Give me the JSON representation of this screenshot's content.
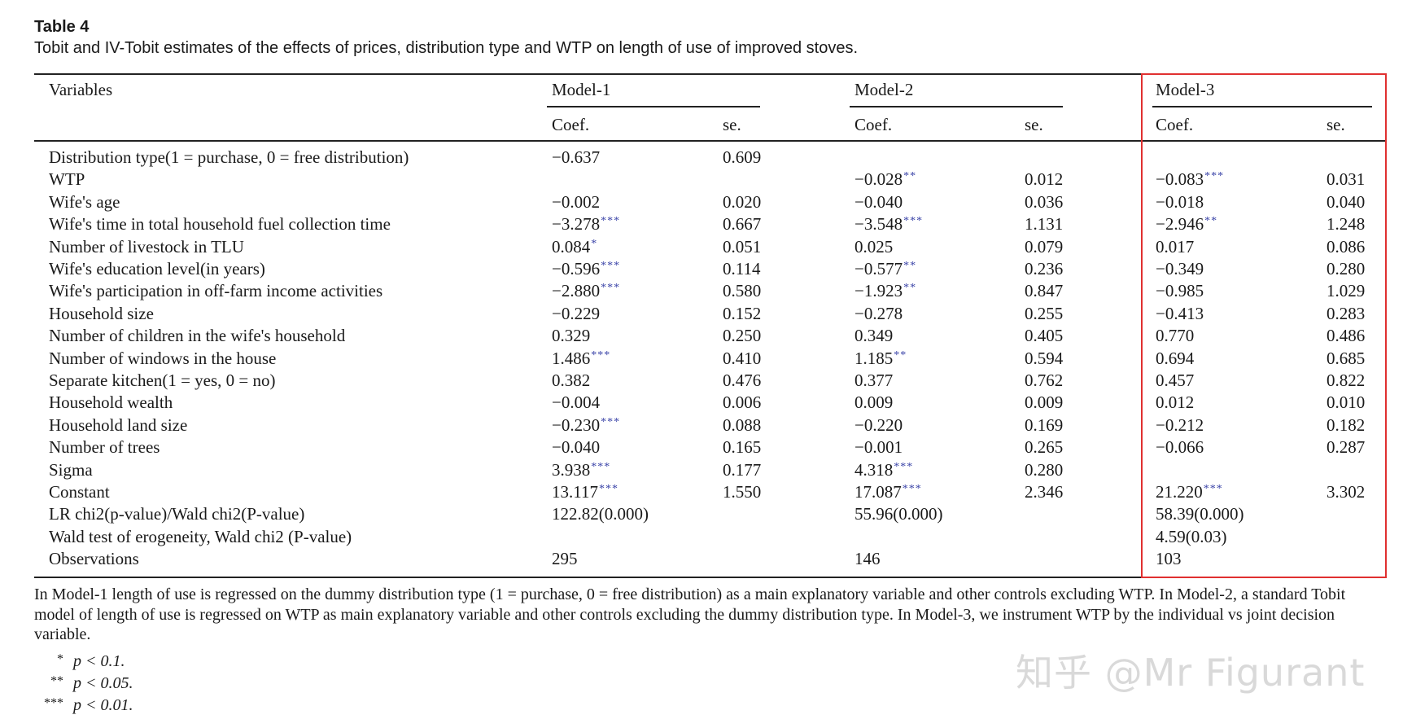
{
  "table_label": "Table 4",
  "caption": "Tobit and IV-Tobit estimates of the effects of prices, distribution type and WTP on length of use of improved stoves.",
  "header": {
    "variables": "Variables",
    "models": [
      "Model-1",
      "Model-2",
      "Model-3"
    ],
    "coef": "Coef.",
    "se": "se."
  },
  "rows": [
    {
      "var": "Distribution type(1 = purchase, 0 = free distribution)",
      "m1c": "−0.637",
      "m1s": "",
      "m1se": "0.609",
      "m2c": "",
      "m2s": "",
      "m2se": "",
      "m3c": "",
      "m3s": "",
      "m3se": ""
    },
    {
      "var": "WTP",
      "m1c": "",
      "m1s": "",
      "m1se": "",
      "m2c": "−0.028",
      "m2s": "**",
      "m2se": "0.012",
      "m3c": "−0.083",
      "m3s": "***",
      "m3se": "0.031"
    },
    {
      "var": "Wife's age",
      "m1c": "−0.002",
      "m1s": "",
      "m1se": "0.020",
      "m2c": "−0.040",
      "m2s": "",
      "m2se": "0.036",
      "m3c": "−0.018",
      "m3s": "",
      "m3se": "0.040"
    },
    {
      "var": "Wife's time in total household fuel collection time",
      "m1c": "−3.278",
      "m1s": "***",
      "m1se": "0.667",
      "m2c": "−3.548",
      "m2s": "***",
      "m2se": "1.131",
      "m3c": "−2.946",
      "m3s": "**",
      "m3se": "1.248"
    },
    {
      "var": "Number of livestock in TLU",
      "m1c": "0.084",
      "m1s": "*",
      "m1se": "0.051",
      "m2c": "0.025",
      "m2s": "",
      "m2se": "0.079",
      "m3c": "0.017",
      "m3s": "",
      "m3se": "0.086"
    },
    {
      "var": "Wife's education level(in years)",
      "m1c": "−0.596",
      "m1s": "***",
      "m1se": "0.114",
      "m2c": "−0.577",
      "m2s": "**",
      "m2se": "0.236",
      "m3c": "−0.349",
      "m3s": "",
      "m3se": "0.280"
    },
    {
      "var": "Wife's participation in off-farm income activities",
      "m1c": "−2.880",
      "m1s": "***",
      "m1se": "0.580",
      "m2c": "−1.923",
      "m2s": "**",
      "m2se": "0.847",
      "m3c": "−0.985",
      "m3s": "",
      "m3se": "1.029"
    },
    {
      "var": "Household size",
      "m1c": "−0.229",
      "m1s": "",
      "m1se": "0.152",
      "m2c": "−0.278",
      "m2s": "",
      "m2se": "0.255",
      "m3c": "−0.413",
      "m3s": "",
      "m3se": "0.283"
    },
    {
      "var": "Number of children in the wife's household",
      "m1c": "0.329",
      "m1s": "",
      "m1se": "0.250",
      "m2c": "0.349",
      "m2s": "",
      "m2se": "0.405",
      "m3c": "0.770",
      "m3s": "",
      "m3se": "0.486"
    },
    {
      "var": "Number of windows in the house",
      "m1c": "1.486",
      "m1s": "***",
      "m1se": "0.410",
      "m2c": "1.185",
      "m2s": "**",
      "m2se": "0.594",
      "m3c": "0.694",
      "m3s": "",
      "m3se": "0.685"
    },
    {
      "var": "Separate kitchen(1 = yes, 0 = no)",
      "m1c": "0.382",
      "m1s": "",
      "m1se": "0.476",
      "m2c": "0.377",
      "m2s": "",
      "m2se": "0.762",
      "m3c": "0.457",
      "m3s": "",
      "m3se": "0.822"
    },
    {
      "var": "Household wealth",
      "m1c": "−0.004",
      "m1s": "",
      "m1se": "0.006",
      "m2c": "0.009",
      "m2s": "",
      "m2se": "0.009",
      "m3c": "0.012",
      "m3s": "",
      "m3se": "0.010"
    },
    {
      "var": "Household land size",
      "m1c": "−0.230",
      "m1s": "***",
      "m1se": "0.088",
      "m2c": "−0.220",
      "m2s": "",
      "m2se": "0.169",
      "m3c": "−0.212",
      "m3s": "",
      "m3se": "0.182"
    },
    {
      "var": "Number of trees",
      "m1c": "−0.040",
      "m1s": "",
      "m1se": "0.165",
      "m2c": "−0.001",
      "m2s": "",
      "m2se": "0.265",
      "m3c": "−0.066",
      "m3s": "",
      "m3se": "0.287"
    },
    {
      "var": "Sigma",
      "m1c": "3.938",
      "m1s": "***",
      "m1se": "0.177",
      "m2c": "4.318",
      "m2s": "***",
      "m2se": "0.280",
      "m3c": "",
      "m3s": "",
      "m3se": ""
    },
    {
      "var": "Constant",
      "m1c": "13.117",
      "m1s": "***",
      "m1se": "1.550",
      "m2c": "17.087",
      "m2s": "***",
      "m2se": "2.346",
      "m3c": "21.220",
      "m3s": "***",
      "m3se": "3.302"
    },
    {
      "var": "LR chi2(p-value)/Wald chi2(P-value)",
      "m1c": "122.82(0.000)",
      "m1s": "",
      "m1se": "",
      "m2c": "55.96(0.000)",
      "m2s": "",
      "m2se": "",
      "m3c": "58.39(0.000)",
      "m3s": "",
      "m3se": ""
    },
    {
      "var": "Wald test of erogeneity, Wald chi2 (P-value)",
      "m1c": "",
      "m1s": "",
      "m1se": "",
      "m2c": "",
      "m2s": "",
      "m2se": "",
      "m3c": "4.59(0.03)",
      "m3s": "",
      "m3se": ""
    },
    {
      "var": "Observations",
      "m1c": "295",
      "m1s": "",
      "m1se": "",
      "m2c": "146",
      "m2s": "",
      "m2se": "",
      "m3c": "103",
      "m3s": "",
      "m3se": ""
    }
  ],
  "note": "In Model-1 length of use is regressed on the dummy distribution type (1 = purchase, 0 = free distribution) as a main explanatory variable and other controls excluding WTP. In Model-2, a standard Tobit model of length of use is regressed on WTP as main explanatory variable and other controls excluding the dummy distribution type. In Model-3, we instrument WTP by the individual vs joint decision variable.",
  "significance": [
    {
      "mark": "*",
      "text": "p < 0.1."
    },
    {
      "mark": "**",
      "text": "p < 0.05."
    },
    {
      "mark": "***",
      "text": "p < 0.01."
    }
  ],
  "watermark": "知乎 @Mr Figurant",
  "colors": {
    "highlight_box": "#e03030",
    "stars": "#3b44a8"
  }
}
